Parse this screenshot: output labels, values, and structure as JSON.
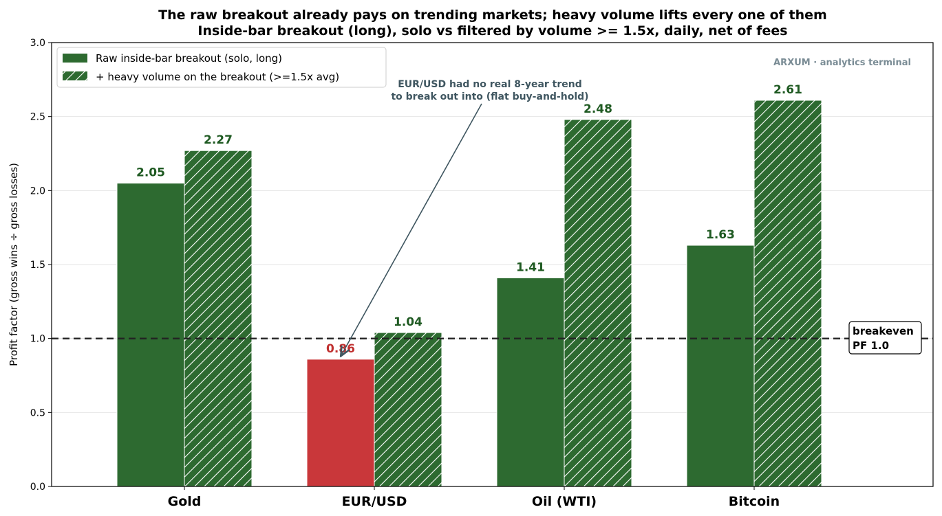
{
  "chart_data": {
    "type": "bar",
    "title": "The raw breakout already pays on trending markets; heavy volume lifts every one of them",
    "subtitle": "Inside-bar breakout (long), solo vs filtered by volume >= 1.5x, daily, net of fees",
    "ylabel": "Profit factor (gross wins ÷ gross losses)",
    "xlabel": "",
    "ylim": [
      0,
      3.0
    ],
    "yticks": [
      "0.0",
      "0.5",
      "1.0",
      "1.5",
      "2.0",
      "2.5",
      "3.0"
    ],
    "categories": [
      "Gold",
      "EUR/USD",
      "Oil (WTI)",
      "Bitcoin"
    ],
    "series": [
      {
        "name": "Raw inside-bar breakout (solo, long)",
        "values": [
          2.05,
          0.86,
          1.41,
          1.63
        ],
        "labels": [
          "2.05",
          "0.86",
          "1.41",
          "1.63"
        ],
        "hatched": false
      },
      {
        "name": "+ heavy volume on the breakout (>=1.5x avg)",
        "values": [
          2.27,
          1.04,
          2.48,
          2.61
        ],
        "labels": [
          "2.27",
          "1.04",
          "2.48",
          "2.61"
        ],
        "hatched": true
      }
    ],
    "reference_line": {
      "value": 1.0,
      "label_line1": "breakeven",
      "label_line2": "PF 1.0",
      "style": "dashed"
    },
    "annotation": {
      "line1": "EUR/USD had no real 8-year trend",
      "line2": "to break out into (flat buy-and-hold)",
      "target_category": "EUR/USD",
      "target_value": 0.86
    },
    "watermark": "ARXUM · analytics terminal",
    "legend_position": "top-left",
    "grid": "horizontal",
    "colors": {
      "positive": "#2d6a30",
      "negative": "#c9373a",
      "positive_label": "#1f5a22",
      "negative_label": "#c0302f",
      "annotation": "#3f5660"
    }
  }
}
